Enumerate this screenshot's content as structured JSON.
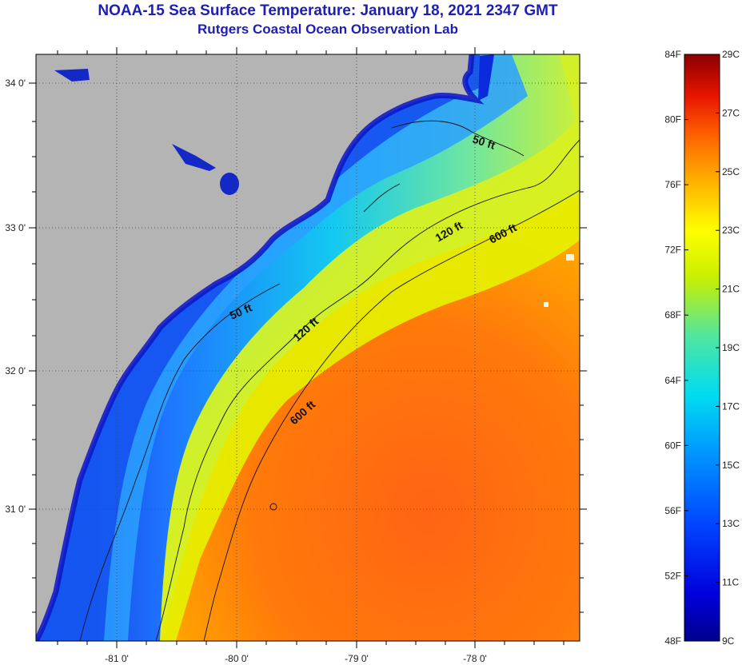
{
  "header": {
    "title": "NOAA-15 Sea Surface Temperature:  January 18, 2021 2347 GMT",
    "subtitle": "Rutgers Coastal Ocean Observation Lab"
  },
  "map": {
    "lat_labels": [
      "34 0'",
      "33 0'",
      "32 0'",
      "31 0'"
    ],
    "lon_labels": [
      "-81 0'",
      "-80 0'",
      "-79 0'",
      "-78 0'"
    ],
    "contour_labels": {
      "c50a": "50 ft",
      "c50b": "50 ft",
      "c120a": "120 ft",
      "c120b": "120 ft",
      "c600a": "600 ft",
      "c600b": "600 ft"
    },
    "colors": {
      "land": "#b4b4b4",
      "outline": "#000000"
    }
  },
  "colorbar": {
    "f_labels": [
      "84F",
      "80F",
      "76F",
      "72F",
      "68F",
      "64F",
      "60F",
      "56F",
      "52F",
      "48F"
    ],
    "c_labels": [
      "29C",
      "27C",
      "25C",
      "23C",
      "21C",
      "19C",
      "17C",
      "15C",
      "13C",
      "11C",
      "9C"
    ],
    "range_f": [
      48,
      84
    ],
    "range_c": [
      9,
      29
    ]
  }
}
